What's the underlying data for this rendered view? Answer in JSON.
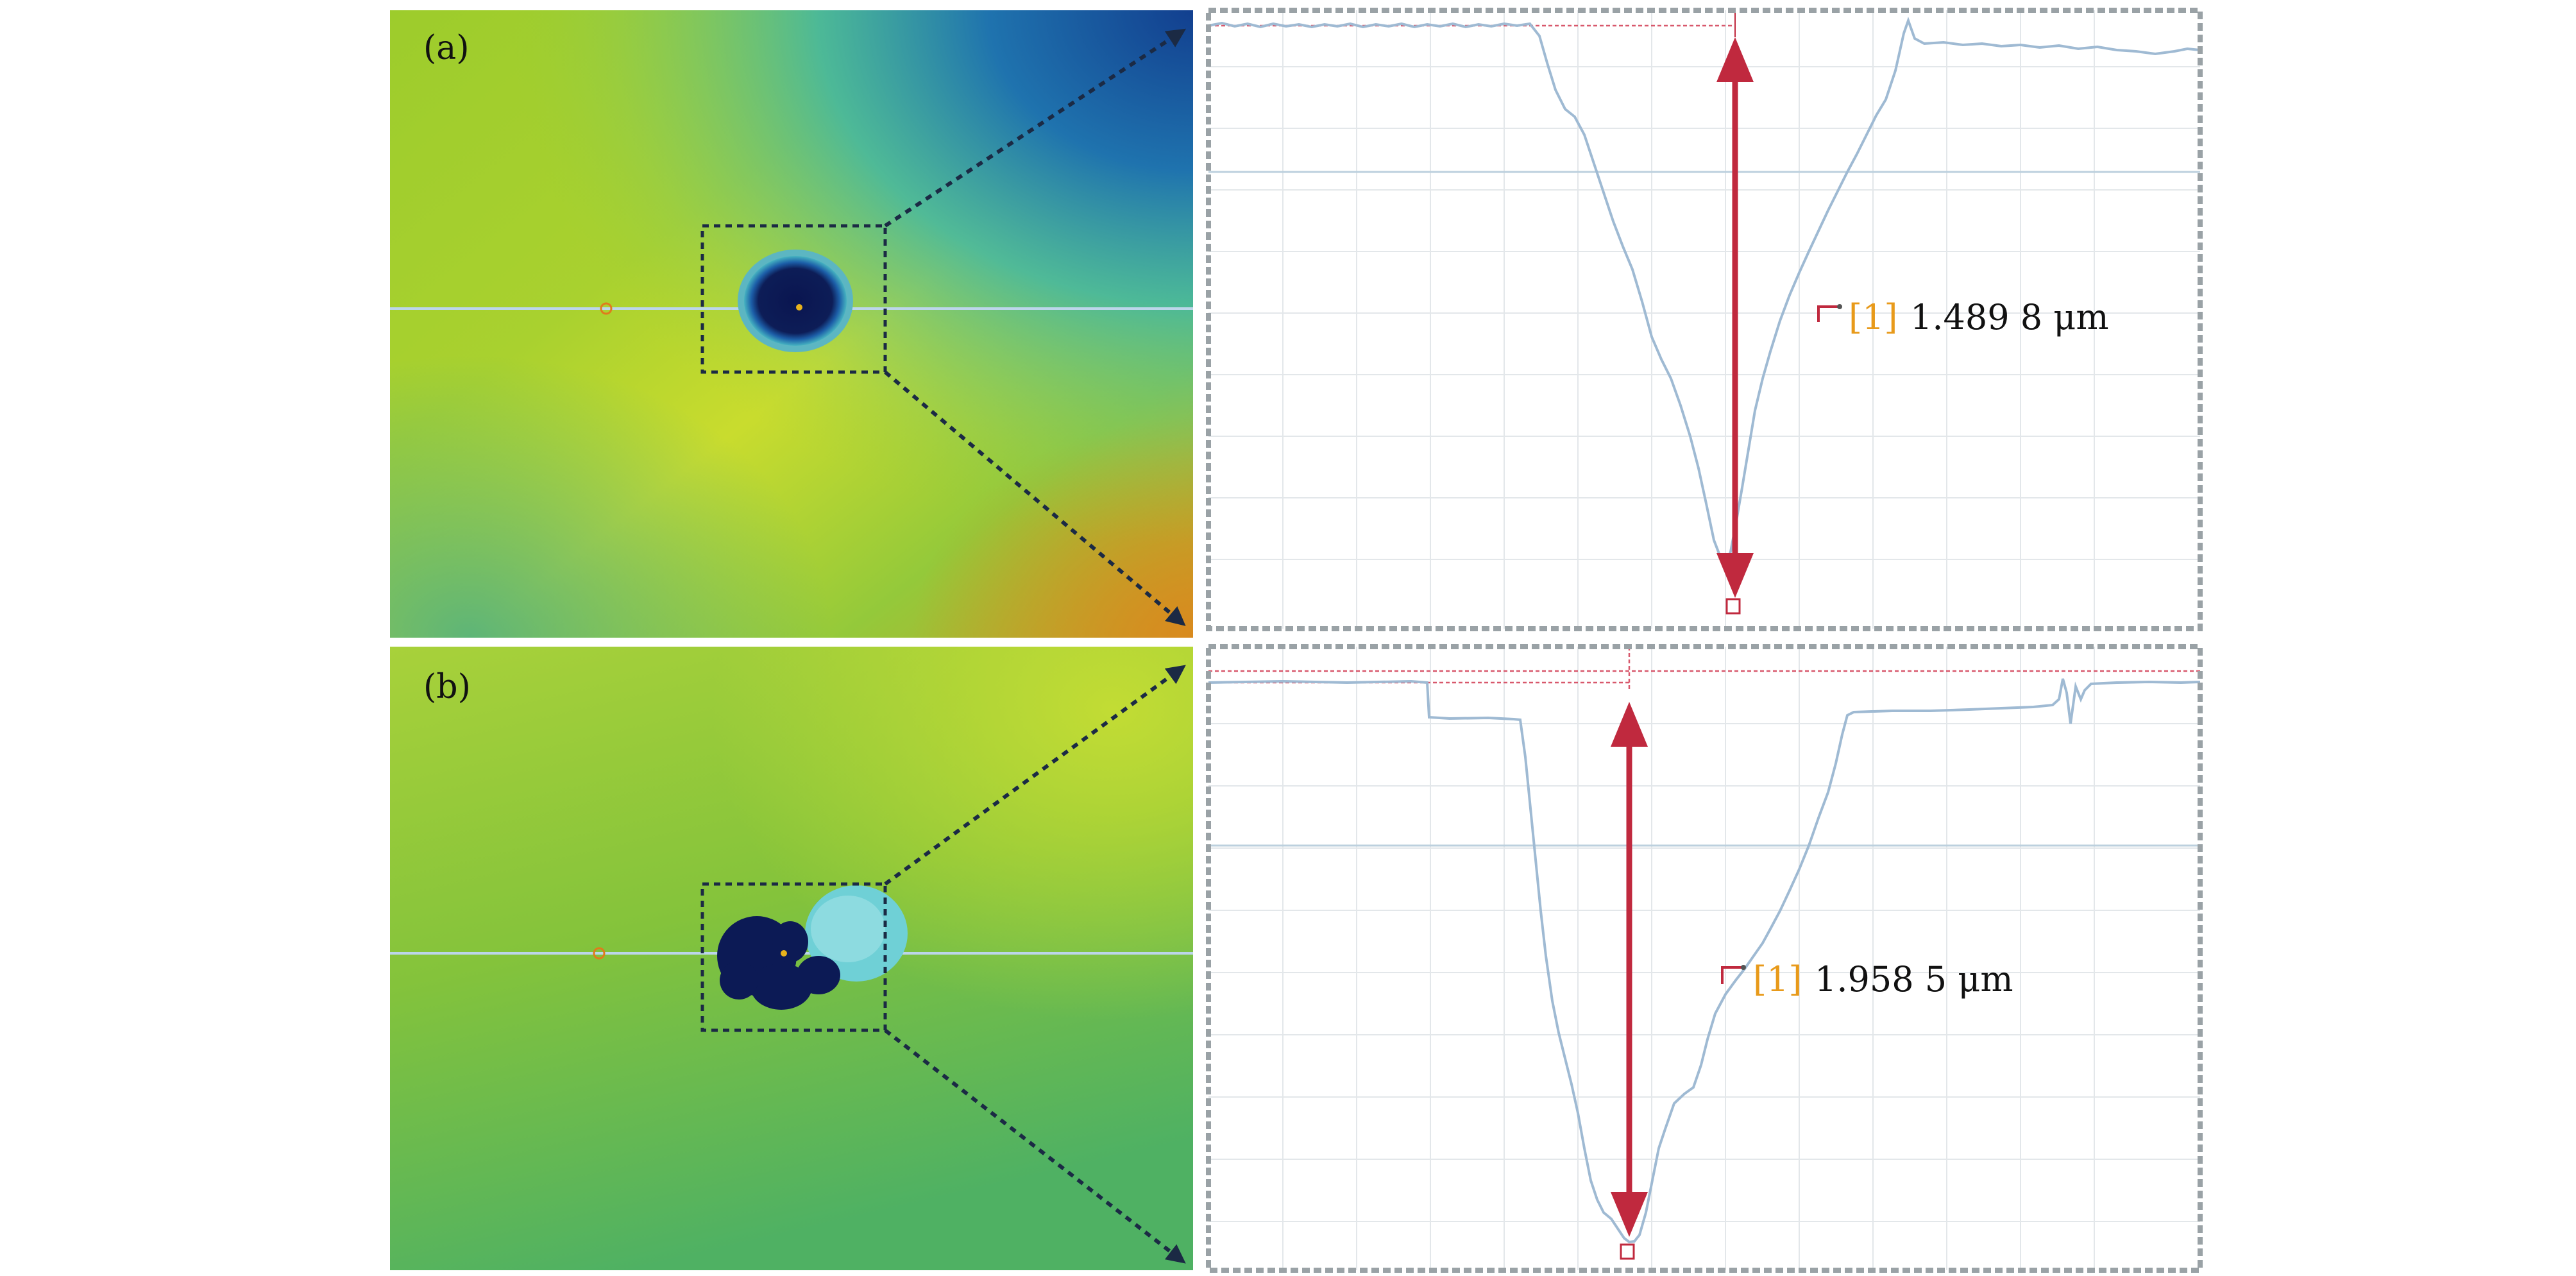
{
  "panels": [
    {
      "id": "a",
      "label": "(a)",
      "measurement": {
        "index_label": "[1]",
        "depth_value": "1.489 8 μm"
      }
    },
    {
      "id": "b",
      "label": "(b)",
      "measurement": {
        "index_label": "[1]",
        "depth_value": "1.958 5 μm"
      }
    }
  ],
  "colors": {
    "profile_line": "#9fbad3",
    "arrow": "#c0293e",
    "label_index": "#e89a1a",
    "zoom_box": "#1b2a44",
    "frame": "#9aa2a6"
  }
}
